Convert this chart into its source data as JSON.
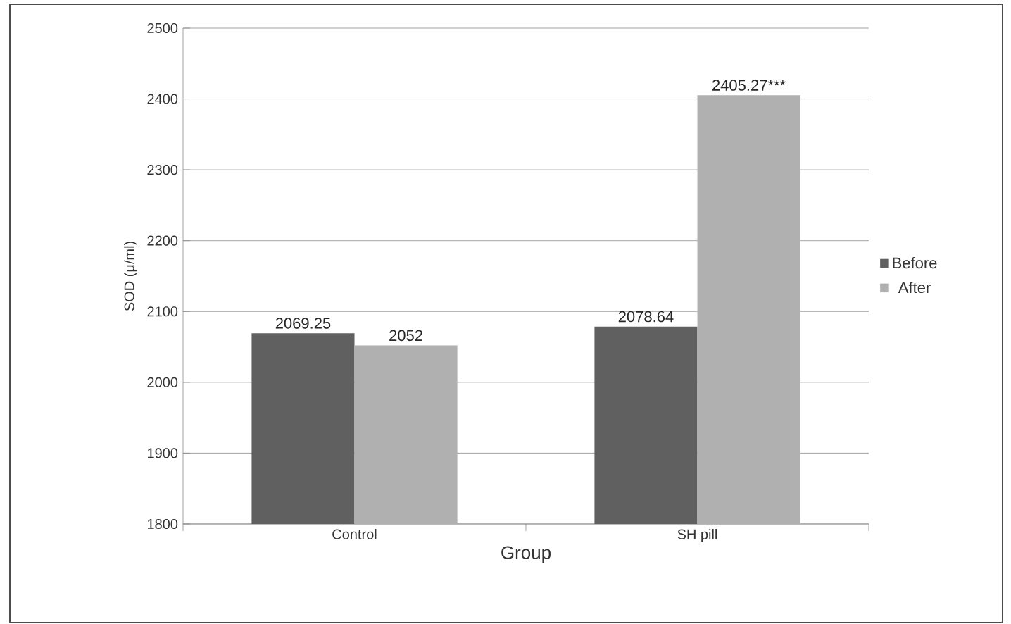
{
  "chart_data": {
    "type": "bar",
    "xlabel": "Group",
    "ylabel": "SOD (μ/ml)",
    "categories": [
      "Control",
      "SH pill"
    ],
    "series": [
      {
        "name": "Before",
        "color": "#606060",
        "values": [
          2069.25,
          2078.64
        ],
        "value_labels": [
          "2069.25",
          "2078.64"
        ]
      },
      {
        "name": "After",
        "color": "#b0b0b0",
        "values": [
          2052,
          2405.27
        ],
        "value_labels": [
          "2052",
          "2405.27***"
        ]
      }
    ],
    "ylim": [
      1800,
      2500
    ],
    "yticks": [
      1800,
      1900,
      2000,
      2100,
      2200,
      2300,
      2400,
      2500
    ],
    "grid": "y",
    "legend": "right"
  }
}
